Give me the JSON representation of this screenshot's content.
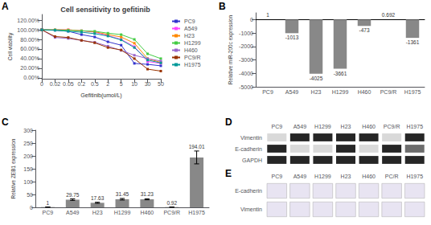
{
  "chart_data": [
    {
      "type": "line",
      "title": "Cell sensitivity to gefitinib",
      "annotations": [
        "A"
      ],
      "xlabel": "Gefitinib(umol/L)",
      "ylabel": "Cell viability",
      "categories": [
        "0",
        "0.02",
        "0.05",
        "0.2",
        "0.5",
        "2",
        "5",
        "10",
        "30",
        "50"
      ],
      "series": [
        {
          "name": "PC9",
          "color": "#3333CC",
          "values": [
            100,
            99,
            97,
            90,
            85,
            75,
            68,
            30,
            28,
            25
          ]
        },
        {
          "name": "A549",
          "color": "#FF44FF",
          "values": [
            100,
            100,
            100,
            98,
            95,
            88,
            80,
            65,
            34,
            30
          ]
        },
        {
          "name": "H23",
          "color": "#FF8800",
          "values": [
            100,
            100,
            100,
            98,
            96,
            90,
            85,
            72,
            40,
            32
          ]
        },
        {
          "name": "H1299",
          "color": "#44CC44",
          "values": [
            100,
            100,
            99,
            98,
            97,
            93,
            90,
            80,
            50,
            40
          ]
        },
        {
          "name": "H460",
          "color": "#9966CC",
          "values": [
            100,
            84,
            82,
            78,
            74,
            66,
            57,
            47,
            40,
            35
          ]
        },
        {
          "name": "PC9/R",
          "color": "#993300",
          "values": [
            100,
            86,
            84,
            78,
            73,
            63,
            58,
            40,
            18,
            14
          ]
        },
        {
          "name": "H1975",
          "color": "#009999",
          "values": [
            100,
            99,
            97,
            95,
            92,
            87,
            79,
            63,
            37,
            31
          ]
        }
      ],
      "ylim": [
        -2,
        132
      ],
      "yticks": [
        {
          "value": 0,
          "label": "0.00%"
        },
        {
          "value": 20,
          "label": "20.00%"
        },
        {
          "value": 40,
          "label": "40.00%"
        },
        {
          "value": 60,
          "label": "60.00%"
        },
        {
          "value": 80,
          "label": "80.00%"
        },
        {
          "value": 100,
          "label": "100.00%"
        },
        {
          "value": 120,
          "label": "120.00%"
        }
      ],
      "marker": "square",
      "legend": "upper right",
      "grid": false
    },
    {
      "type": "bar",
      "annotations": [
        "B"
      ],
      "ylabel": "Relative miR-200c expression",
      "categories": [
        "PC9",
        "A549",
        "H23",
        "H1299",
        "H460",
        "PC9/R",
        "H1975"
      ],
      "values": [
        1,
        -1013,
        -4025,
        -3661,
        -473,
        0.692,
        -1361
      ],
      "color": "#888888",
      "ylim": [
        -5000,
        500
      ],
      "yticks": [
        -5000,
        -4000,
        -3000,
        -2000,
        -1000,
        0
      ],
      "data_labels": true,
      "grid": false
    },
    {
      "type": "bar",
      "annotations": [
        "C"
      ],
      "ylabel": "Relative ZEB1 expression",
      "categories": [
        "PC9",
        "A549",
        "H23",
        "H1299",
        "H460",
        "PC9/R",
        "H1975"
      ],
      "values": [
        1,
        29.75,
        17.63,
        31.45,
        31.23,
        0.92,
        194.01
      ],
      "error_bars": [
        0,
        3,
        2,
        3,
        2,
        0.1,
        25
      ],
      "color": "#888888",
      "ylim": [
        0,
        300
      ],
      "yticks": [
        0,
        50,
        100,
        150,
        200,
        250,
        300
      ],
      "data_labels": true,
      "grid": false
    },
    {
      "type": "heatmap",
      "annotations": [
        "D"
      ],
      "categories": [
        "PC9",
        "A549",
        "H1299",
        "H23",
        "H460",
        "PC9/R",
        "H1975"
      ],
      "series": [
        {
          "name": "Vimentin",
          "values": [
            0,
            1,
            1,
            1,
            1,
            0,
            1
          ]
        },
        {
          "name": "E-cadherin",
          "values": [
            1,
            0,
            0,
            1,
            0,
            1,
            0.5
          ]
        },
        {
          "name": "GAPDH",
          "values": [
            1,
            1,
            1,
            1,
            1,
            1,
            1
          ]
        }
      ]
    },
    {
      "type": "tiles",
      "annotations": [
        "E"
      ],
      "categories": [
        "PC9",
        "A549",
        "H1299",
        "H23",
        "H460",
        "PC/R",
        "H1975"
      ],
      "series": [
        {
          "name": "E-cadherin"
        },
        {
          "name": "Vimentin"
        }
      ],
      "color": "#E8E4F2"
    }
  ]
}
